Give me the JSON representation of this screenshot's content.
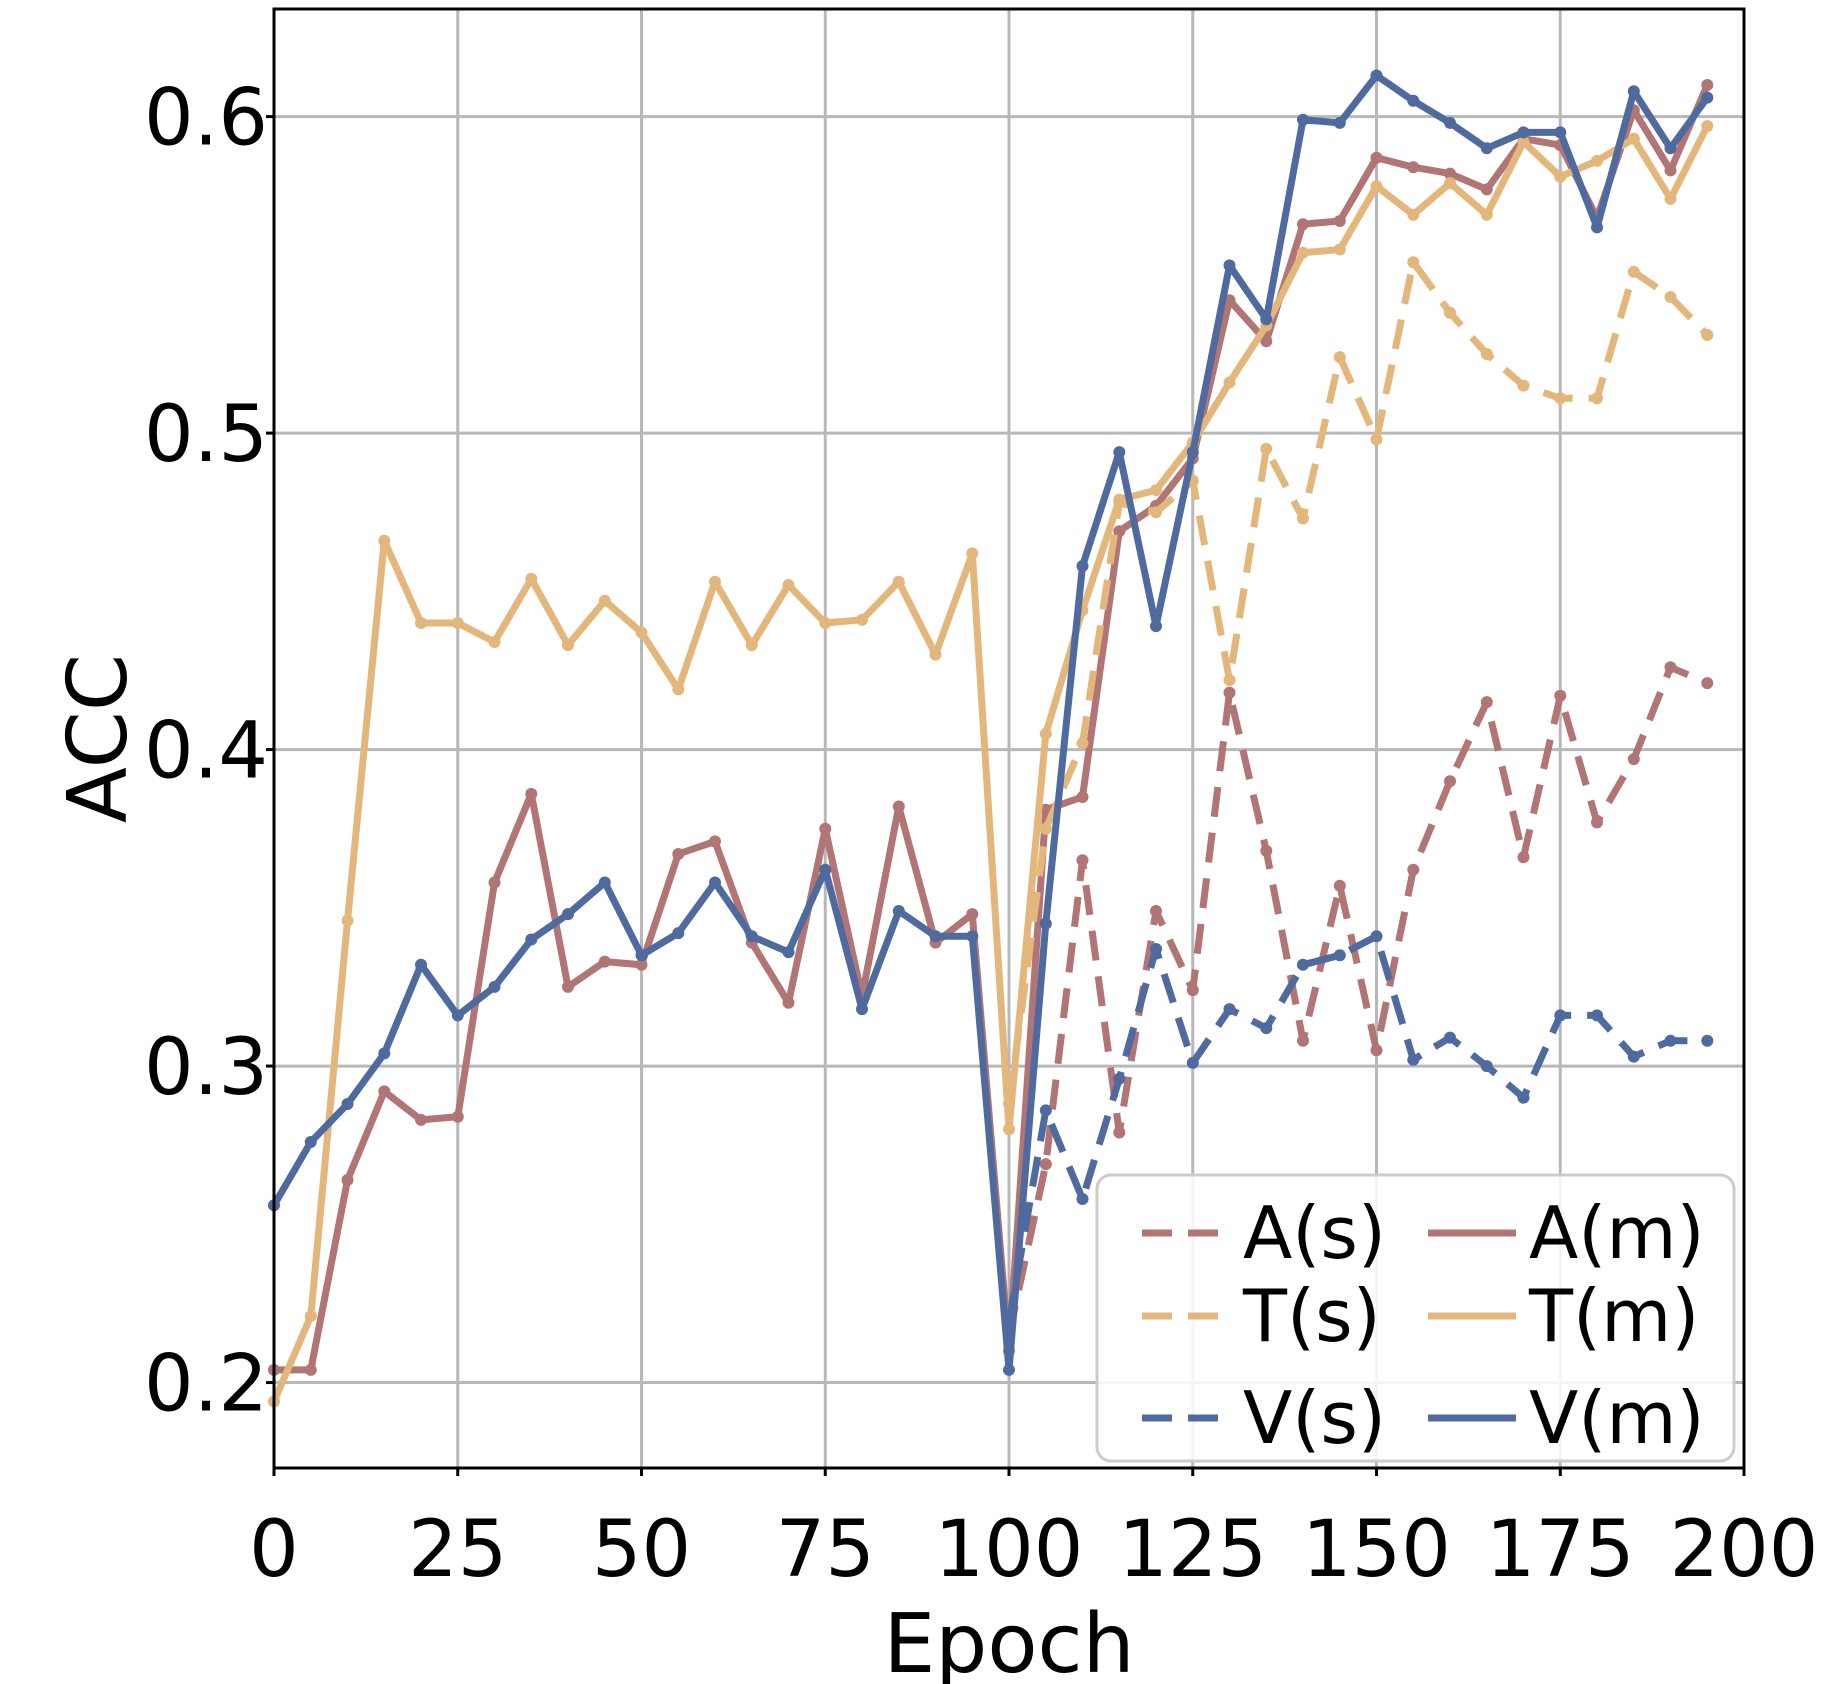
{
  "chart_data": {
    "type": "line",
    "title": "",
    "xlabel": "Epoch",
    "ylabel": "ACC",
    "xlim": [
      0,
      200
    ],
    "ylim": [
      0.173,
      0.634
    ],
    "xticks": [
      0,
      25,
      50,
      75,
      100,
      125,
      150,
      175,
      200
    ],
    "xtick_labels": [
      "0",
      "25",
      "50",
      "75",
      "100",
      "125",
      "150",
      "175",
      "200"
    ],
    "yticks": [
      0.2,
      0.3,
      0.4,
      0.5,
      0.6
    ],
    "ytick_labels": [
      "0.2",
      "0.3",
      "0.4",
      "0.5",
      "0.6"
    ],
    "grid": true,
    "legend_position": "bottom-right",
    "legend_columns": 2,
    "x": [
      0,
      5,
      10,
      15,
      20,
      25,
      30,
      35,
      40,
      45,
      50,
      55,
      60,
      65,
      70,
      75,
      80,
      85,
      90,
      95,
      100,
      105,
      110,
      115,
      120,
      125,
      130,
      135,
      140,
      145,
      150,
      155,
      160,
      165,
      170,
      175,
      180,
      185,
      190,
      195
    ],
    "series": [
      {
        "name": "A(s)",
        "color": "#b07574",
        "dash": true,
        "values": [
          null,
          null,
          null,
          null,
          null,
          null,
          null,
          null,
          null,
          null,
          null,
          null,
          null,
          null,
          null,
          null,
          null,
          null,
          null,
          null,
          0.215,
          0.269,
          0.365,
          0.279,
          0.349,
          0.324,
          0.418,
          0.368,
          0.308,
          0.357,
          0.305,
          0.362,
          0.39,
          0.415,
          0.366,
          0.417,
          0.377,
          0.397,
          0.426,
          0.421
        ]
      },
      {
        "name": "A(m)",
        "color": "#b07574",
        "dash": false,
        "values": [
          0.204,
          0.204,
          0.264,
          0.292,
          0.283,
          0.284,
          0.358,
          0.386,
          0.325,
          0.333,
          0.332,
          0.367,
          0.371,
          0.339,
          0.32,
          0.375,
          0.322,
          0.382,
          0.339,
          0.348,
          0.21,
          0.381,
          0.385,
          0.469,
          0.477,
          0.492,
          0.542,
          0.529,
          0.566,
          0.567,
          0.587,
          0.584,
          0.582,
          0.577,
          0.593,
          0.591,
          0.568,
          0.602,
          0.583,
          0.61
        ]
      },
      {
        "name": "T(s)",
        "color": "#e3b77b",
        "dash": true,
        "values": [
          null,
          null,
          null,
          null,
          null,
          null,
          null,
          null,
          null,
          null,
          null,
          null,
          null,
          null,
          null,
          null,
          null,
          null,
          null,
          null,
          0.288,
          0.375,
          0.402,
          0.478,
          0.475,
          0.485,
          0.422,
          0.495,
          0.473,
          0.524,
          0.498,
          0.554,
          0.538,
          0.525,
          0.515,
          0.511,
          0.511,
          0.551,
          0.543,
          0.531
        ]
      },
      {
        "name": "T(m)",
        "color": "#e3b77b",
        "dash": false,
        "values": [
          0.194,
          0.221,
          0.346,
          0.466,
          0.44,
          0.44,
          0.434,
          0.454,
          0.433,
          0.447,
          0.437,
          0.419,
          0.453,
          0.433,
          0.452,
          0.44,
          0.441,
          0.453,
          0.43,
          0.462,
          0.28,
          0.405,
          0.444,
          0.479,
          0.482,
          0.497,
          0.516,
          0.534,
          0.557,
          0.558,
          0.578,
          0.569,
          0.579,
          0.569,
          0.592,
          0.581,
          0.586,
          0.593,
          0.574,
          0.597
        ]
      },
      {
        "name": "V(s)",
        "color": "#4f6a9f",
        "dash": true,
        "values": [
          null,
          null,
          null,
          null,
          null,
          null,
          null,
          null,
          null,
          null,
          null,
          null,
          null,
          null,
          null,
          null,
          null,
          null,
          null,
          null,
          0.219,
          0.286,
          0.258,
          0.296,
          0.337,
          0.301,
          0.318,
          0.312,
          0.332,
          0.335,
          0.341,
          0.302,
          0.309,
          0.3,
          0.29,
          0.316,
          0.316,
          0.303,
          0.308,
          0.308
        ]
      },
      {
        "name": "V(m)",
        "color": "#4f6a9f",
        "dash": false,
        "values": [
          0.256,
          0.276,
          0.288,
          0.304,
          0.332,
          0.316,
          0.325,
          0.34,
          0.348,
          0.358,
          0.335,
          0.342,
          0.358,
          0.341,
          0.336,
          0.362,
          0.318,
          0.349,
          0.341,
          0.341,
          0.204,
          0.345,
          0.458,
          0.494,
          0.439,
          0.494,
          0.553,
          0.536,
          0.599,
          0.598,
          0.613,
          0.605,
          0.598,
          0.59,
          0.595,
          0.595,
          0.565,
          0.608,
          0.59,
          0.606
        ]
      }
    ]
  }
}
